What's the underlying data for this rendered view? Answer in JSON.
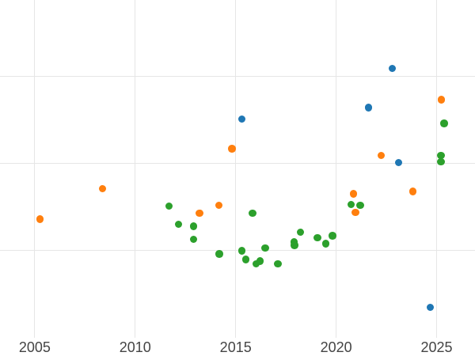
{
  "chart_data": {
    "type": "scatter",
    "title": "",
    "xlabel": "",
    "ylabel": "",
    "legend_position": "none",
    "grid": true,
    "x_range": [
      2003.27,
      2026.91
    ],
    "x_ticks": [
      2005,
      2010,
      2015,
      2020,
      2025
    ],
    "x_tick_labels": [
      "2005",
      "2010",
      "2015",
      "2020",
      "2025"
    ],
    "y_range": [
      0,
      3.875
    ],
    "y_gridlines": [
      1,
      2,
      3
    ],
    "y_axis_labels_visible": false,
    "y_unit_note": "no y-axis tick labels visible; y values expressed in gridline units",
    "series": [
      {
        "name": "blue-series",
        "color": "#1f77b4",
        "points": [
          [
            2022.8,
            3.09
          ],
          [
            2015.31,
            2.51
          ],
          [
            2021.62,
            2.64
          ],
          [
            2023.11,
            2.01
          ],
          [
            2024.69,
            0.35
          ]
        ]
      },
      {
        "name": "orange-series",
        "color": "#ff7f0e",
        "points": [
          [
            2005.25,
            1.36
          ],
          [
            2008.38,
            1.71
          ],
          [
            2013.19,
            1.43
          ],
          [
            2014.17,
            1.52
          ],
          [
            2014.81,
            2.17
          ],
          [
            2020.87,
            1.65
          ],
          [
            2020.96,
            1.44
          ],
          [
            2022.25,
            2.09
          ],
          [
            2023.82,
            1.68
          ],
          [
            2025.23,
            2.73
          ]
        ]
      },
      {
        "name": "green-series",
        "color": "#2ca02c",
        "points": [
          [
            2011.69,
            1.51
          ],
          [
            2012.15,
            1.3
          ],
          [
            2012.9,
            1.28
          ],
          [
            2012.9,
            1.13
          ],
          [
            2014.18,
            0.96
          ],
          [
            2015.3,
            1.0
          ],
          [
            2015.51,
            0.9
          ],
          [
            2015.84,
            1.43
          ],
          [
            2016.01,
            0.85
          ],
          [
            2016.21,
            0.88
          ],
          [
            2016.46,
            1.03
          ],
          [
            2017.1,
            0.85
          ],
          [
            2017.9,
            1.1
          ],
          [
            2017.93,
            1.06
          ],
          [
            2018.22,
            1.21
          ],
          [
            2019.06,
            1.15
          ],
          [
            2019.48,
            1.08
          ],
          [
            2019.81,
            1.17
          ],
          [
            2020.75,
            1.53
          ],
          [
            2021.2,
            1.52
          ],
          [
            2025.22,
            2.09
          ],
          [
            2025.22,
            2.02
          ],
          [
            2025.38,
            2.46
          ]
        ]
      }
    ]
  },
  "style": {
    "background_color": "#ffffff",
    "gridline_color": "#e6e6e6",
    "tick_label_color": "#444444"
  }
}
